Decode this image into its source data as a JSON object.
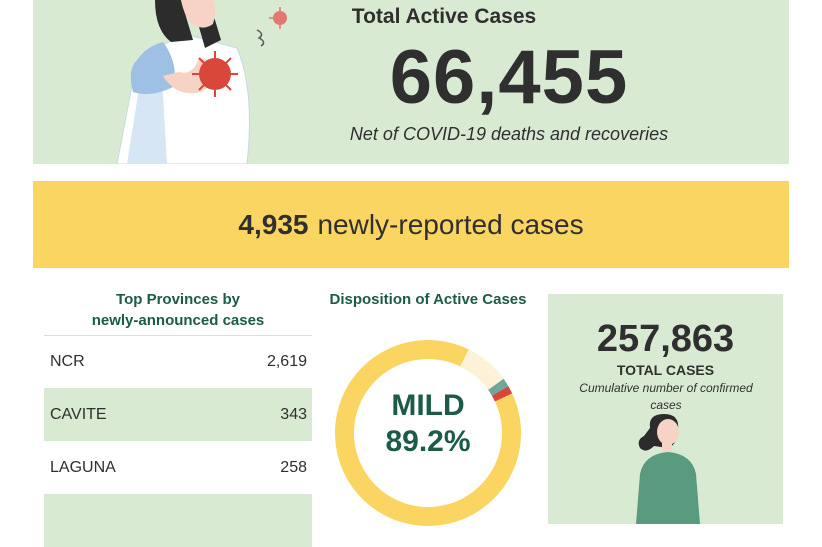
{
  "active": {
    "title": "Total Active Cases",
    "value": "66,455",
    "subtitle": "Net of COVID-19 deaths and recoveries"
  },
  "new_cases": {
    "value": "4,935",
    "label": "newly-reported cases"
  },
  "provinces": {
    "title_line1": "Top Provinces by",
    "title_line2": "newly-announced cases",
    "rows": [
      {
        "name": "NCR",
        "value": "2,619"
      },
      {
        "name": "CAVITE",
        "value": "343"
      },
      {
        "name": "LAGUNA",
        "value": "258"
      }
    ]
  },
  "disposition": {
    "title": "Disposition of Active Cases",
    "center_category": "MILD",
    "center_value": "89.2%"
  },
  "total": {
    "value": "257,863",
    "label": "TOTAL CASES",
    "description": "Cumulative number of confirmed cases"
  },
  "colors": {
    "panel_green": "#d9ead3",
    "banner_yellow": "#fbd561",
    "heading_teal": "#1c5a49",
    "mild_yellow": "#fbd561",
    "asymptomatic_cream": "#fdf1d8",
    "severe_red": "#d9473a",
    "critical_teal": "#6fa89a"
  },
  "chart_data": {
    "type": "pie",
    "title": "Disposition of Active Cases",
    "series": [
      {
        "name": "MILD",
        "value": 89.2,
        "color": "#fbd561"
      },
      {
        "name": "",
        "value": 7.9,
        "color": "#fdf1d8"
      },
      {
        "name": "",
        "value": 1.5,
        "color": "#6fa89a"
      },
      {
        "name": "",
        "value": 1.4,
        "color": "#d9473a"
      }
    ]
  }
}
